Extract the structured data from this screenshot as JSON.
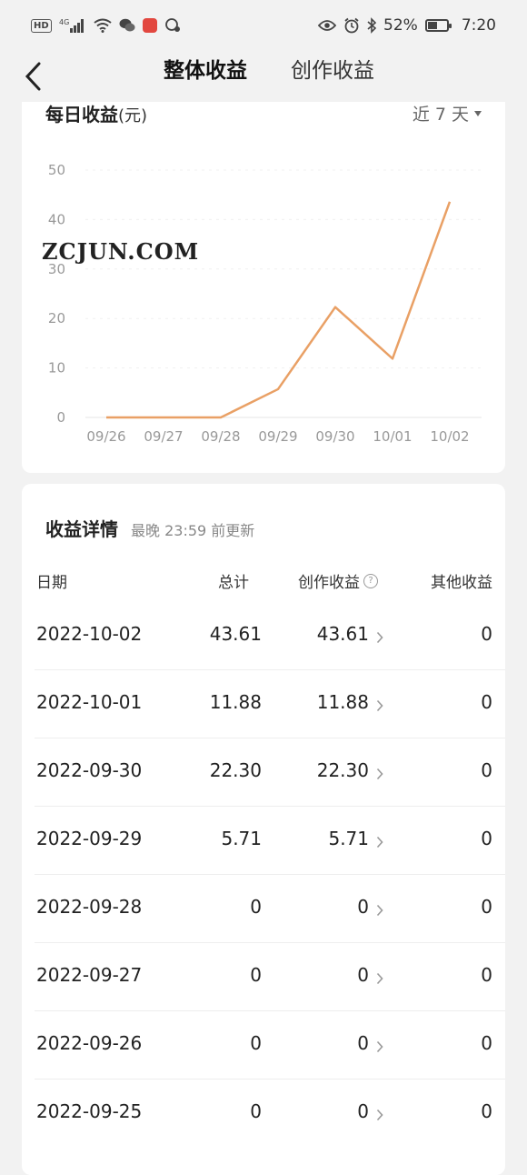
{
  "status_bar": {
    "left_badges": [
      "HD",
      "4G"
    ],
    "battery": "52%",
    "battery_level": 0.52,
    "time": "7:20"
  },
  "nav": {
    "tabs": [
      {
        "label": "整体收益",
        "active": true
      },
      {
        "label": "创作收益",
        "active": false
      }
    ]
  },
  "daily": {
    "title": "每日收益",
    "unit": "(元)",
    "range": "近 7 天",
    "watermark": "ZCJUN.COM"
  },
  "chart_data": {
    "type": "line",
    "x": [
      "09/26",
      "09/27",
      "09/28",
      "09/29",
      "09/30",
      "10/01",
      "10/02"
    ],
    "series": [
      {
        "values": [
          0,
          0,
          0,
          5.71,
          22.3,
          11.88,
          43.61
        ]
      }
    ],
    "y_ticks": [
      0,
      10,
      20,
      30,
      40,
      50
    ],
    "ylim": [
      0,
      50
    ],
    "grid": true,
    "line_color": "#e9a065"
  },
  "detail": {
    "title": "收益详情",
    "note": "最晚 23:59 前更新",
    "headers": {
      "date": "日期",
      "total": "总计",
      "create": "创作收益",
      "other": "其他收益"
    },
    "rows": [
      {
        "date": "2022-10-02",
        "total": "43.61",
        "create": "43.61",
        "other": "0"
      },
      {
        "date": "2022-10-01",
        "total": "11.88",
        "create": "11.88",
        "other": "0"
      },
      {
        "date": "2022-09-30",
        "total": "22.30",
        "create": "22.30",
        "other": "0"
      },
      {
        "date": "2022-09-29",
        "total": "5.71",
        "create": "5.71",
        "other": "0"
      },
      {
        "date": "2022-09-28",
        "total": "0",
        "create": "0",
        "other": "0"
      },
      {
        "date": "2022-09-27",
        "total": "0",
        "create": "0",
        "other": "0"
      },
      {
        "date": "2022-09-26",
        "total": "0",
        "create": "0",
        "other": "0"
      },
      {
        "date": "2022-09-25",
        "total": "0",
        "create": "0",
        "other": "0"
      }
    ]
  },
  "colors": {
    "accent": "#e3473f",
    "background": "#f2f2f2"
  }
}
